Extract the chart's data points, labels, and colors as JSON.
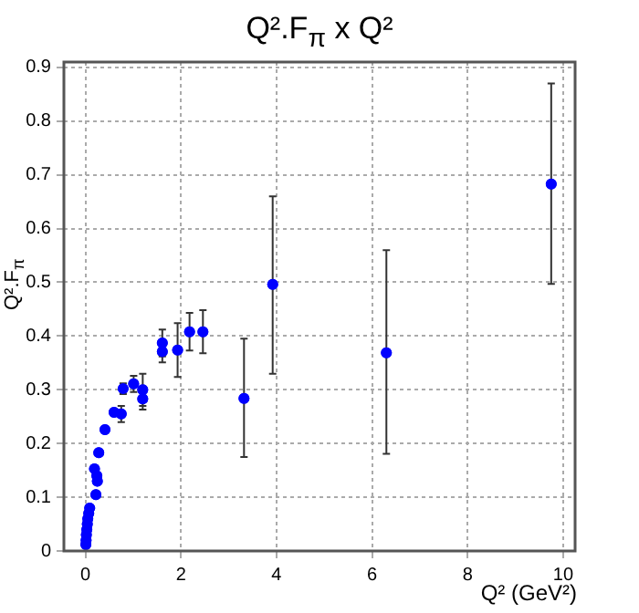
{
  "chart_data": {
    "type": "scatter",
    "title": "Q².F$_{π}$ x Q²",
    "xlabel": "Q² (GeV²)",
    "ylabel": "Q².F$_{π}$",
    "xlim": [
      -0.45,
      10.25
    ],
    "ylim": [
      0,
      0.91
    ],
    "xticks": [
      0,
      2,
      4,
      6,
      8,
      10
    ],
    "yticks": [
      0,
      0.1,
      0.2,
      0.3,
      0.4,
      0.5,
      0.6,
      0.7,
      0.8,
      0.9
    ],
    "grid": true,
    "legend": false,
    "marker": "circle",
    "series": [
      {
        "color": "#0000ff",
        "x": [
          0.01,
          0.015,
          0.02,
          0.03,
          0.04,
          0.05,
          0.07,
          0.09,
          0.22,
          0.19,
          0.24,
          0.25,
          0.28,
          0.41,
          0.6,
          0.75,
          0.79,
          1.01,
          1.2,
          1.2,
          1.61,
          1.61,
          1.93,
          2.18,
          2.46,
          3.32,
          3.92,
          6.3,
          9.75
        ],
        "values": [
          0.012,
          0.02,
          0.03,
          0.04,
          0.05,
          0.06,
          0.07,
          0.08,
          0.105,
          0.153,
          0.14,
          0.13,
          0.183,
          0.226,
          0.258,
          0.255,
          0.302,
          0.311,
          0.3,
          0.283,
          0.387,
          0.371,
          0.374,
          0.408,
          0.408,
          0.284,
          0.496,
          0.369,
          0.683
        ],
        "errors": [
          null,
          null,
          null,
          null,
          null,
          null,
          null,
          null,
          null,
          null,
          null,
          null,
          null,
          null,
          null,
          0.015,
          0.01,
          0.015,
          0.03,
          0.02,
          0.025,
          0.02,
          0.05,
          0.035,
          0.04,
          [
            0.175,
            0.395
          ],
          [
            0.33,
            0.66
          ],
          [
            0.181,
            0.56
          ],
          [
            0.497,
            0.87
          ]
        ]
      }
    ]
  }
}
